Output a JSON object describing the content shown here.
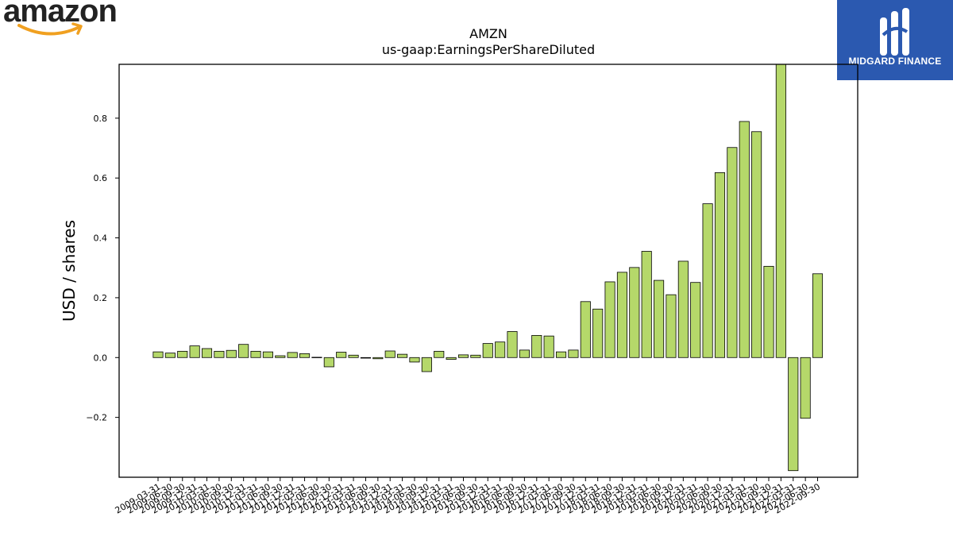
{
  "branding": {
    "left_logo_text": "amazon",
    "right_logo_text": "MIDGARD FINANCE",
    "right_logo_bg": "#2b59b0",
    "left_logo_accent": "#f0a020"
  },
  "chart_data": {
    "type": "bar",
    "title": "AMZN",
    "subtitle": "us-gaap:EarningsPerShareDiluted",
    "xlabel": "",
    "ylabel": "USD / shares",
    "ylim": [
      -0.4,
      0.98
    ],
    "yticks": [
      -0.2,
      0.0,
      0.2,
      0.4,
      0.6,
      0.8
    ],
    "ytick_labels": [
      "−0.2",
      "0.0",
      "0.2",
      "0.4",
      "0.6",
      "0.8"
    ],
    "bar_color": "#b5d86a",
    "edge_color": "#000000",
    "grid": false,
    "categories": [
      "2009-03-31",
      "2009-06-30",
      "2009-09-30",
      "2009-12-31",
      "2010-03-31",
      "2010-06-30",
      "2010-09-30",
      "2010-12-31",
      "2011-03-31",
      "2011-06-30",
      "2011-09-30",
      "2011-12-31",
      "2012-03-31",
      "2012-06-30",
      "2012-09-30",
      "2012-12-31",
      "2013-03-31",
      "2013-06-30",
      "2013-09-30",
      "2013-12-31",
      "2014-03-31",
      "2014-06-30",
      "2014-09-30",
      "2014-12-31",
      "2015-03-31",
      "2015-06-30",
      "2015-09-30",
      "2015-12-31",
      "2016-03-31",
      "2016-06-30",
      "2016-09-30",
      "2016-12-31",
      "2017-03-31",
      "2017-06-30",
      "2017-09-30",
      "2017-12-31",
      "2018-03-31",
      "2018-06-30",
      "2018-09-30",
      "2018-12-31",
      "2019-03-31",
      "2019-06-30",
      "2019-09-30",
      "2019-12-31",
      "2020-03-31",
      "2020-06-30",
      "2020-09-30",
      "2020-12-31",
      "2021-03-31",
      "2021-06-30",
      "2021-09-30",
      "2021-12-31",
      "2022-03-31",
      "2022-06-30",
      "2022-09-30"
    ],
    "values": [
      0.019,
      0.015,
      0.021,
      0.039,
      0.03,
      0.021,
      0.024,
      0.044,
      0.021,
      0.019,
      0.006,
      0.017,
      0.013,
      0.001,
      -0.031,
      0.018,
      0.008,
      -0.002,
      -0.004,
      0.022,
      0.011,
      -0.015,
      -0.047,
      0.021,
      -0.006,
      0.009,
      0.008,
      0.047,
      0.052,
      0.087,
      0.025,
      0.074,
      0.072,
      0.019,
      0.025,
      0.187,
      0.162,
      0.253,
      0.285,
      0.301,
      0.355,
      0.258,
      0.21,
      0.322,
      0.251,
      0.514,
      0.618,
      0.702,
      0.789,
      0.755,
      0.305,
      0.98,
      -0.378,
      -0.203,
      0.28
    ]
  }
}
